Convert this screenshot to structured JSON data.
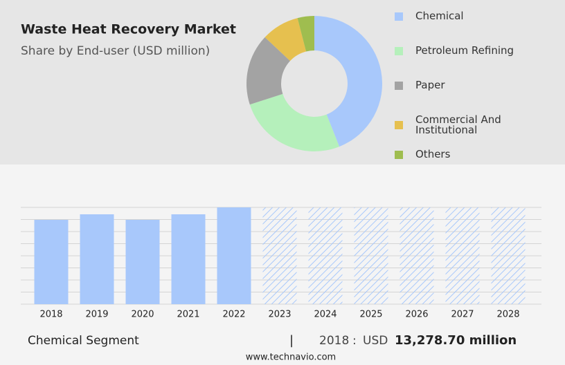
{
  "chart_data": [
    {
      "type": "donut",
      "title": "Waste Heat Recovery Market",
      "subtitle": "Share by End-user (USD million)",
      "categories": [
        "Chemical",
        "Petroleum Refining",
        "Paper",
        "Commercial And Institutional",
        "Others"
      ],
      "values": [
        44,
        26,
        17,
        9,
        4
      ],
      "colors": [
        "#a8c8fb",
        "#b5f0bb",
        "#a3a3a3",
        "#e6c04f",
        "#9fbd4f"
      ]
    },
    {
      "type": "bar",
      "categories": [
        "2018",
        "2019",
        "2020",
        "2021",
        "2022",
        "2023",
        "2024",
        "2025",
        "2026",
        "2027",
        "2028"
      ],
      "values": [
        13278.7,
        14150,
        13280,
        14150,
        15240,
        null,
        null,
        null,
        null,
        null,
        null
      ],
      "color": "#a8c8fb",
      "ylim": [
        0,
        15240
      ],
      "grid": true
    }
  ],
  "footer": {
    "segment": "Chemical Segment",
    "separator": "|",
    "year": "2018",
    "colon": ":",
    "currency": "USD",
    "amount": "13,278.70 million",
    "source": "www.technavio.com"
  }
}
